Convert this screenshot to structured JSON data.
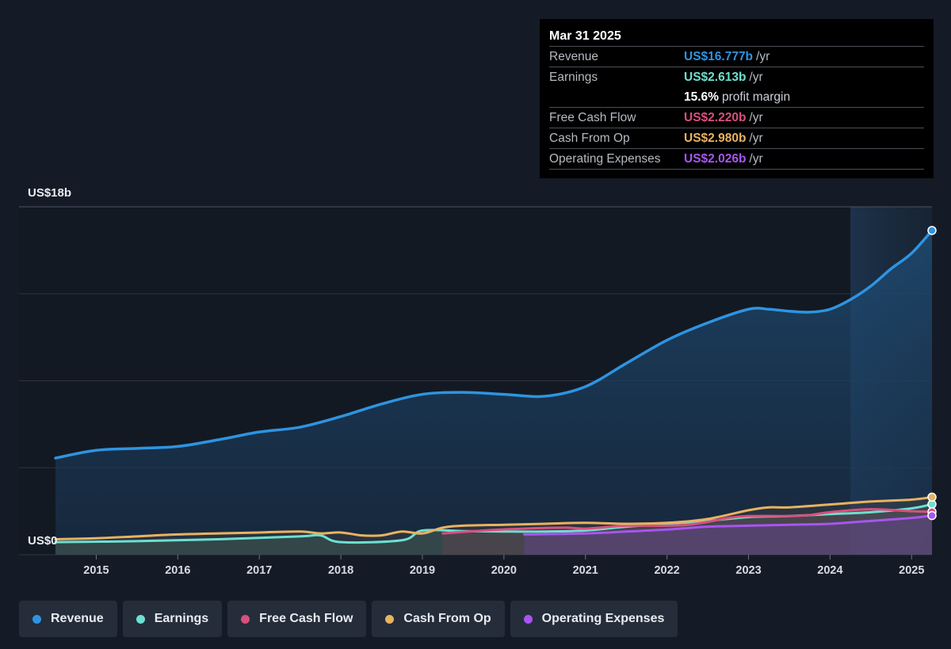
{
  "tooltip": {
    "date": "Mar 31 2025",
    "revenue": {
      "label": "Revenue",
      "value": "US$16.777b",
      "unit": "/yr",
      "color": "#2e94e0"
    },
    "earnings": {
      "label": "Earnings",
      "value": "US$2.613b",
      "unit": "/yr",
      "color": "#6de0d0"
    },
    "margin": {
      "pct": "15.6%",
      "text": "profit margin"
    },
    "fcf": {
      "label": "Free Cash Flow",
      "value": "US$2.220b",
      "unit": "/yr",
      "color": "#d9507e"
    },
    "cfo": {
      "label": "Cash From Op",
      "value": "US$2.980b",
      "unit": "/yr",
      "color": "#e8b261"
    },
    "opex": {
      "label": "Operating Expenses",
      "value": "US$2.026b",
      "unit": "/yr",
      "color": "#a855f0"
    }
  },
  "legend": [
    {
      "label": "Revenue",
      "color": "#2e94e0"
    },
    {
      "label": "Earnings",
      "color": "#6de0d0"
    },
    {
      "label": "Free Cash Flow",
      "color": "#d9507e"
    },
    {
      "label": "Cash From Op",
      "color": "#e8b261"
    },
    {
      "label": "Operating Expenses",
      "color": "#a855f0"
    }
  ],
  "chart_data": {
    "type": "area",
    "y_top_label": "US$18b",
    "y_bottom_label": "US$0",
    "ylim": [
      0,
      18
    ],
    "xlim": [
      2014.5,
      2025.25
    ],
    "highlight_start": 2024.25,
    "x_ticks": [
      "2015",
      "2016",
      "2017",
      "2018",
      "2019",
      "2020",
      "2021",
      "2022",
      "2023",
      "2024",
      "2025"
    ],
    "x_tick_values": [
      2015,
      2016,
      2017,
      2018,
      2019,
      2020,
      2021,
      2022,
      2023,
      2024,
      2025
    ],
    "series": [
      {
        "name": "Revenue",
        "color": "#2e94e0",
        "x": [
          2014.5,
          2015.0,
          2015.5,
          2016.0,
          2016.5,
          2017.0,
          2017.5,
          2018.0,
          2018.5,
          2019.0,
          2019.5,
          2020.0,
          2020.5,
          2021.0,
          2021.5,
          2022.0,
          2022.5,
          2023.0,
          2023.25,
          2023.5,
          2023.75,
          2024.0,
          2024.25,
          2024.5,
          2024.75,
          2025.0,
          2025.25
        ],
        "values": [
          5.0,
          5.4,
          5.5,
          5.6,
          5.95,
          6.35,
          6.6,
          7.15,
          7.8,
          8.3,
          8.4,
          8.3,
          8.2,
          8.7,
          9.9,
          11.1,
          12.0,
          12.7,
          12.7,
          12.6,
          12.55,
          12.7,
          13.2,
          13.9,
          14.8,
          15.6,
          16.777
        ]
      },
      {
        "name": "Earnings",
        "color": "#6de0d0",
        "x": [
          2014.5,
          2015.5,
          2016.5,
          2017.5,
          2017.75,
          2018.0,
          2018.75,
          2019.0,
          2019.5,
          2020.0,
          2020.5,
          2021.0,
          2021.5,
          2022.0,
          2022.5,
          2023.0,
          2023.5,
          2024.0,
          2024.5,
          2025.0,
          2025.25
        ],
        "values": [
          0.65,
          0.7,
          0.8,
          0.95,
          1.0,
          0.65,
          0.75,
          1.25,
          1.22,
          1.2,
          1.2,
          1.25,
          1.45,
          1.6,
          1.75,
          1.95,
          2.0,
          2.1,
          2.2,
          2.4,
          2.613
        ]
      },
      {
        "name": "Free Cash Flow",
        "color": "#d9507e",
        "x": [
          2019.25,
          2019.75,
          2020.25,
          2020.75,
          2021.0,
          2021.5,
          2022.0,
          2022.25,
          2022.5,
          2022.75,
          2023.0,
          2023.5,
          2023.75,
          2024.0,
          2024.5,
          2025.0,
          2025.25
        ],
        "values": [
          1.1,
          1.25,
          1.35,
          1.4,
          1.35,
          1.5,
          1.5,
          1.55,
          1.7,
          1.9,
          2.0,
          2.0,
          2.05,
          2.2,
          2.35,
          2.25,
          2.22
        ]
      },
      {
        "name": "Cash From Op",
        "color": "#e8b261",
        "x": [
          2014.5,
          2015.0,
          2015.5,
          2016.0,
          2016.5,
          2017.0,
          2017.5,
          2017.75,
          2018.0,
          2018.25,
          2018.5,
          2018.75,
          2019.0,
          2019.25,
          2019.5,
          2020.0,
          2020.5,
          2021.0,
          2021.5,
          2022.0,
          2022.5,
          2023.0,
          2023.25,
          2023.5,
          2024.0,
          2024.5,
          2025.0,
          2025.25
        ],
        "values": [
          0.8,
          0.85,
          0.95,
          1.05,
          1.1,
          1.15,
          1.2,
          1.1,
          1.15,
          1.0,
          1.0,
          1.2,
          1.1,
          1.4,
          1.5,
          1.55,
          1.6,
          1.65,
          1.6,
          1.65,
          1.85,
          2.3,
          2.45,
          2.45,
          2.6,
          2.75,
          2.85,
          2.98
        ]
      },
      {
        "name": "Operating Expenses",
        "color": "#a855f0",
        "x": [
          2020.25,
          2021.0,
          2021.5,
          2022.0,
          2022.5,
          2023.0,
          2023.5,
          2024.0,
          2024.5,
          2025.0,
          2025.25
        ],
        "values": [
          1.05,
          1.1,
          1.2,
          1.3,
          1.45,
          1.5,
          1.55,
          1.6,
          1.75,
          1.9,
          2.026
        ]
      }
    ]
  }
}
